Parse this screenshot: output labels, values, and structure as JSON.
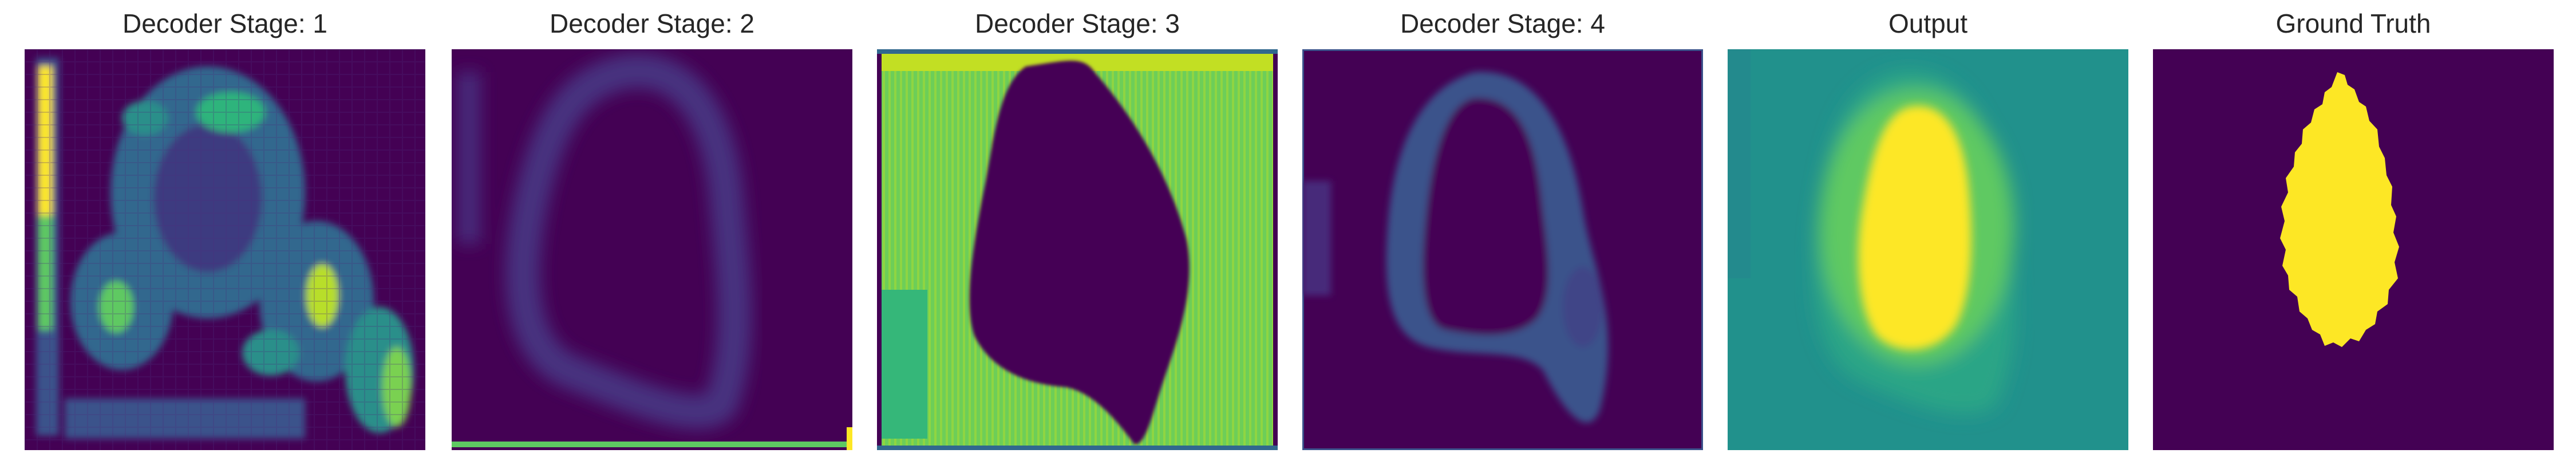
{
  "figure": {
    "panels": [
      {
        "title": "Decoder Stage: 1",
        "kind": "feature-map-coarse"
      },
      {
        "title": "Decoder Stage: 2",
        "kind": "feature-map-blur"
      },
      {
        "title": "Decoder Stage: 3",
        "kind": "feature-map-bright"
      },
      {
        "title": "Decoder Stage: 4",
        "kind": "feature-map-ring"
      },
      {
        "title": "Output",
        "kind": "prediction"
      },
      {
        "title": "Ground Truth",
        "kind": "mask"
      }
    ]
  },
  "colormap": {
    "name": "viridis",
    "low": "#440154",
    "mid_low": "#3b528b",
    "mid": "#21918c",
    "mid_high": "#5ec962",
    "high": "#fde725"
  }
}
